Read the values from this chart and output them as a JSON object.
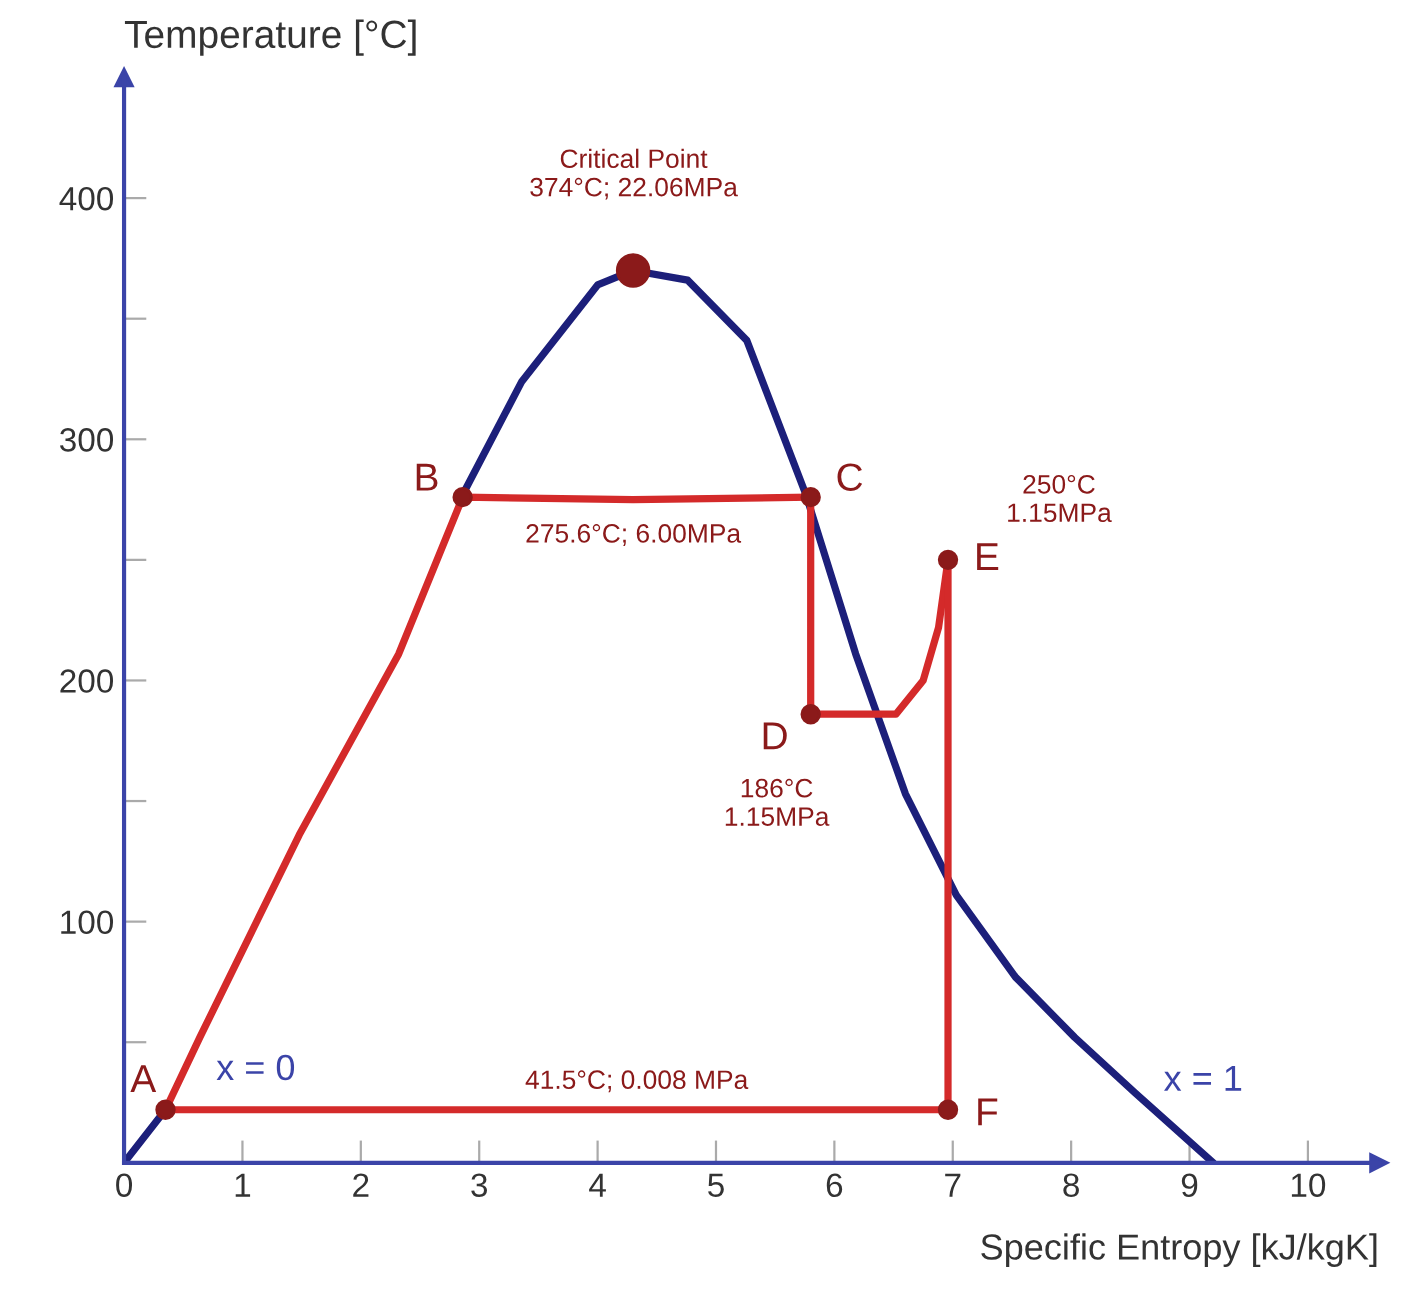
{
  "chart_data": {
    "type": "line",
    "xlabel": "Specific Entropy [kJ/kgK]",
    "ylabel": "Temperature [°C]",
    "xlim": [
      0,
      10.6
    ],
    "ylim": [
      0,
      450
    ],
    "xticks": [
      0,
      1,
      2,
      3,
      4,
      5,
      6,
      7,
      8,
      9,
      10
    ],
    "yticks": [
      {
        "value": 50,
        "label": null
      },
      100,
      {
        "value": 150,
        "label": null
      },
      200,
      {
        "value": 250,
        "label": null
      },
      300,
      {
        "value": 350,
        "label": null
      },
      400
    ],
    "grid": false,
    "legend": false,
    "series": [
      {
        "color": "#1c1f7a",
        "x": [
          0,
          0.35,
          0.64,
          1.48,
          2.32,
          2.86,
          3.36,
          4.0,
          4.3,
          4.76,
          5.26,
          5.76,
          6.18,
          6.6,
          7.03,
          7.53,
          8.03,
          8.54,
          9.2
        ],
        "values": [
          0,
          22,
          null,
          null,
          null,
          277,
          324,
          364,
          370,
          366,
          341,
          277,
          211,
          153,
          111,
          77,
          52,
          29,
          0
        ]
      },
      {
        "color": "#d42a2a",
        "x": [
          0.35,
          0.64,
          1.48,
          2.32,
          2.86,
          4.3,
          5.8
        ],
        "values": [
          22,
          52,
          136,
          211,
          276,
          275,
          276
        ]
      },
      {
        "color": "#d42a2a",
        "x": [
          5.8,
          5.8,
          6.52,
          6.75,
          6.88,
          6.96
        ],
        "values": [
          276,
          186,
          186,
          200,
          222,
          250
        ]
      },
      {
        "color": "#d42a2a",
        "x": [
          6.96,
          6.96
        ],
        "values": [
          250,
          22
        ]
      },
      {
        "color": "#d42a2a",
        "x": [
          0.35,
          6.96
        ],
        "values": [
          22,
          22
        ]
      },
      {
        "type": "scatter",
        "color": "#8b1a1a",
        "marker": "circle",
        "x": [
          0.35,
          2.86,
          5.8,
          5.8,
          6.96,
          6.96
        ],
        "values": [
          22,
          276,
          276,
          186,
          250,
          22
        ]
      },
      {
        "type": "bubble",
        "color": "#8b1a1a",
        "marker": "circle",
        "x": [
          4.3
        ],
        "values": [
          370
        ]
      }
    ],
    "annotations": [
      "Critical Point\n374°C; 22.06MPa",
      {
        "text": "275.6°C; 6.00MPa",
        "x": 4.3,
        "y": 275
      },
      "250°C\n1.15MPa",
      "186°C\n1.15MPa",
      {
        "text": "41.5°C; 0.008 MPa",
        "x": 4.4,
        "y": 22
      },
      "x = 0",
      "x = 1",
      {
        "text": "A",
        "x": 0.35,
        "y": 22
      },
      {
        "text": "B",
        "x": 2.86,
        "y": 276
      },
      {
        "text": "C",
        "x": 5.8,
        "y": 276
      },
      {
        "text": "D",
        "x": 5.8,
        "y": 186
      },
      {
        "text": "E",
        "x": 6.96,
        "y": 250
      },
      {
        "text": "F",
        "x": 6.96,
        "y": 22
      }
    ]
  }
}
